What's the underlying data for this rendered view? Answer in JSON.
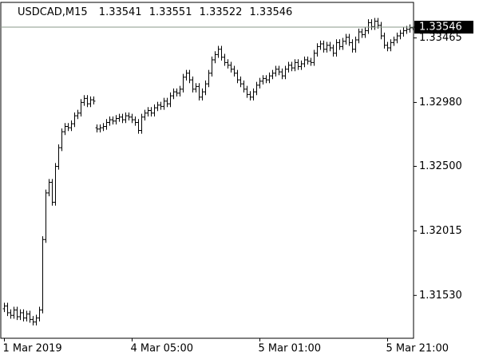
{
  "chart_data": {
    "type": "ohlc",
    "symbol": "USDCAD,M15",
    "color": "#000000",
    "price_line_color": "#8a9a8a",
    "ylim": [
      1.3122,
      1.3372
    ],
    "yticks": [
      {
        "value": 1.3153,
        "label": "1.31530"
      },
      1.32015,
      {
        "value": 1.325,
        "label": "1.32500"
      },
      {
        "value": 1.3298,
        "label": "1.32980"
      },
      1.33465
    ],
    "categories": [
      "1 Mar 2019",
      null,
      null,
      null,
      null,
      null,
      null,
      null,
      null,
      null,
      null,
      null,
      null,
      null,
      null,
      null,
      null,
      null,
      null,
      null,
      null,
      null,
      null,
      null,
      null,
      null,
      null,
      null,
      null,
      null,
      null,
      null,
      null,
      null,
      null,
      null,
      null,
      null,
      null,
      null,
      "4 Mar 05:00",
      null,
      null,
      null,
      null,
      null,
      null,
      null,
      null,
      null,
      null,
      null,
      null,
      null,
      null,
      null,
      null,
      null,
      null,
      null,
      null,
      null,
      null,
      null,
      null,
      null,
      null,
      null,
      null,
      null,
      null,
      null,
      null,
      null,
      null,
      null,
      null,
      null,
      null,
      null,
      "5 Mar 01:00",
      null,
      null,
      null,
      null,
      null,
      null,
      null,
      null,
      null,
      null,
      null,
      null,
      null,
      null,
      null,
      null,
      null,
      null,
      null,
      null,
      null,
      null,
      null,
      null,
      null,
      null,
      null,
      null,
      null,
      null,
      null,
      null,
      null,
      null,
      null,
      null,
      null,
      null,
      null,
      "5 Mar 21:00",
      null,
      null,
      null,
      null,
      null,
      null,
      null,
      null
    ],
    "open": [
      1.3143,
      1.3145,
      1.314,
      1.3138,
      1.3142,
      1.3137,
      1.314,
      1.3136,
      1.3139,
      1.3135,
      1.3133,
      1.3136,
      1.3142,
      1.3195,
      1.323,
      1.3238,
      1.3223,
      1.325,
      1.3264,
      1.3276,
      1.328,
      1.3279,
      1.3282,
      1.3288,
      1.329,
      1.3298,
      1.3301,
      1.3297,
      1.33,
      1.3279,
      1.3278,
      1.3279,
      1.328,
      1.3283,
      1.3285,
      1.3284,
      1.3286,
      1.3287,
      1.3285,
      1.3288,
      1.3287,
      1.3285,
      1.3283,
      1.3277,
      1.3287,
      1.329,
      1.3292,
      1.329,
      1.3294,
      1.3296,
      1.3295,
      1.3299,
      1.3297,
      1.3303,
      1.3306,
      1.3305,
      1.3308,
      1.3317,
      1.332,
      1.3315,
      1.3308,
      1.331,
      1.3302,
      1.3306,
      1.3312,
      1.332,
      1.333,
      1.3334,
      1.3338,
      1.3332,
      1.3328,
      1.3326,
      1.3323,
      1.332,
      1.3315,
      1.3312,
      1.3308,
      1.3304,
      1.3302,
      1.3306,
      1.3311,
      1.3314,
      1.3316,
      1.3315,
      1.3318,
      1.332,
      1.3323,
      1.3321,
      1.3318,
      1.3323,
      1.3326,
      1.3324,
      1.3328,
      1.3325,
      1.3327,
      1.333,
      1.3329,
      1.3328,
      1.3335,
      1.334,
      1.3342,
      1.3338,
      1.3341,
      1.3339,
      1.3335,
      1.3343,
      1.334,
      1.3344,
      1.3347,
      1.3343,
      1.3338,
      1.3345,
      1.3351,
      1.3349,
      1.3352,
      1.3358,
      1.3355,
      1.3359,
      1.3356,
      1.3348,
      1.3341,
      1.3339,
      1.3343,
      1.3345,
      1.3348,
      1.335,
      1.3352,
      1.3353,
      1.33541
    ],
    "high": [
      1.31475,
      1.31475,
      1.31425,
      1.31445,
      1.31445,
      1.31425,
      1.31425,
      1.31415,
      1.31415,
      1.31375,
      1.31385,
      1.31445,
      1.31975,
      1.32325,
      1.32405,
      1.32405,
      1.32525,
      1.32665,
      1.32785,
      1.32825,
      1.32825,
      1.32845,
      1.32905,
      1.32925,
      1.33005,
      1.33035,
      1.33035,
      1.33025,
      1.33025,
      1.32815,
      1.32815,
      1.32825,
      1.32855,
      1.32875,
      1.32875,
      1.32885,
      1.32895,
      1.32895,
      1.32905,
      1.32905,
      1.32895,
      1.32875,
      1.32855,
      1.32895,
      1.32925,
      1.32945,
      1.32945,
      1.32965,
      1.32985,
      1.32985,
      1.33015,
      1.33015,
      1.33055,
      1.33085,
      1.33085,
      1.33105,
      1.33195,
      1.33225,
      1.33225,
      1.33175,
      1.33125,
      1.33125,
      1.33085,
      1.33145,
      1.33225,
      1.33325,
      1.33365,
      1.33405,
      1.33405,
      1.33345,
      1.33305,
      1.33285,
      1.33255,
      1.33225,
      1.33175,
      1.33145,
      1.33105,
      1.33065,
      1.33085,
      1.33135,
      1.33165,
      1.33185,
      1.33185,
      1.33205,
      1.33225,
      1.33255,
      1.33255,
      1.33235,
      1.33255,
      1.33285,
      1.33285,
      1.33305,
      1.33305,
      1.33295,
      1.33325,
      1.33325,
      1.33315,
      1.33375,
      1.33425,
      1.33445,
      1.33445,
      1.33435,
      1.33435,
      1.33415,
      1.33455,
      1.33455,
      1.33465,
      1.33495,
      1.33495,
      1.33455,
      1.33475,
      1.33535,
      1.33535,
      1.33545,
      1.33605,
      1.33605,
      1.33615,
      1.33615,
      1.33585,
      1.33505,
      1.33435,
      1.33455,
      1.33475,
      1.33505,
      1.33525,
      1.33545,
      1.33555,
      1.33566,
      1.33551
    ],
    "low": [
      1.31405,
      1.31375,
      1.31355,
      1.31355,
      1.31345,
      1.31345,
      1.31335,
      1.31335,
      1.31325,
      1.31305,
      1.31305,
      1.31335,
      1.31395,
      1.31925,
      1.32275,
      1.32205,
      1.32205,
      1.32475,
      1.32615,
      1.32735,
      1.32765,
      1.32765,
      1.32795,
      1.32855,
      1.32875,
      1.32955,
      1.32945,
      1.32945,
      1.32965,
      1.32755,
      1.32755,
      1.32765,
      1.32775,
      1.32805,
      1.32815,
      1.32815,
      1.32835,
      1.32825,
      1.32825,
      1.32845,
      1.32825,
      1.32805,
      1.32745,
      1.32745,
      1.32845,
      1.32875,
      1.32875,
      1.32875,
      1.32915,
      1.32925,
      1.32925,
      1.32945,
      1.32945,
      1.33005,
      1.33025,
      1.33025,
      1.33055,
      1.33145,
      1.33125,
      1.33055,
      1.33055,
      1.32995,
      1.32995,
      1.33035,
      1.33095,
      1.33175,
      1.33275,
      1.33315,
      1.33295,
      1.33255,
      1.33235,
      1.33205,
      1.33175,
      1.33125,
      1.33095,
      1.33055,
      1.33015,
      1.32995,
      1.32995,
      1.33035,
      1.33085,
      1.33115,
      1.33125,
      1.33125,
      1.33155,
      1.33175,
      1.33185,
      1.33155,
      1.33155,
      1.33205,
      1.33215,
      1.33215,
      1.33225,
      1.33225,
      1.33245,
      1.33265,
      1.33255,
      1.33255,
      1.33325,
      1.33375,
      1.33355,
      1.33355,
      1.33365,
      1.33325,
      1.33325,
      1.33375,
      1.33375,
      1.33415,
      1.33405,
      1.33355,
      1.33355,
      1.33425,
      1.33465,
      1.33465,
      1.33495,
      1.33525,
      1.33525,
      1.33535,
      1.33455,
      1.33385,
      1.33365,
      1.33365,
      1.33405,
      1.33425,
      1.33455,
      1.33475,
      1.33495,
      1.33505,
      1.33522
    ],
    "close": [
      1.3145,
      1.314,
      1.3138,
      1.3142,
      1.3137,
      1.314,
      1.3136,
      1.3139,
      1.3135,
      1.3133,
      1.3136,
      1.3142,
      1.3195,
      1.323,
      1.3238,
      1.3223,
      1.325,
      1.3264,
      1.3276,
      1.328,
      1.3279,
      1.3282,
      1.3288,
      1.329,
      1.3298,
      1.3301,
      1.3297,
      1.33,
      1.3299,
      1.3278,
      1.3279,
      1.328,
      1.3283,
      1.3285,
      1.3284,
      1.3286,
      1.3287,
      1.3285,
      1.3288,
      1.3287,
      1.3285,
      1.3283,
      1.3277,
      1.3287,
      1.329,
      1.3292,
      1.329,
      1.3294,
      1.3296,
      1.3295,
      1.3299,
      1.3297,
      1.3303,
      1.3306,
      1.3305,
      1.3308,
      1.3317,
      1.332,
      1.3315,
      1.3308,
      1.331,
      1.3302,
      1.3306,
      1.3312,
      1.332,
      1.333,
      1.3334,
      1.3338,
      1.3332,
      1.3328,
      1.3326,
      1.3323,
      1.332,
      1.3315,
      1.3312,
      1.3308,
      1.3304,
      1.3302,
      1.3306,
      1.3311,
      1.3314,
      1.3316,
      1.3315,
      1.3318,
      1.332,
      1.3323,
      1.3321,
      1.3318,
      1.3323,
      1.3326,
      1.3324,
      1.3328,
      1.3325,
      1.3327,
      1.333,
      1.3329,
      1.3328,
      1.3335,
      1.334,
      1.3342,
      1.3338,
      1.3341,
      1.3339,
      1.3335,
      1.3343,
      1.334,
      1.3344,
      1.3347,
      1.3343,
      1.3338,
      1.3345,
      1.3351,
      1.3349,
      1.3352,
      1.3358,
      1.3355,
      1.3359,
      1.3356,
      1.3348,
      1.3341,
      1.3339,
      1.3343,
      1.3345,
      1.3348,
      1.335,
      1.3352,
      1.3353,
      1.33541,
      1.33546
    ]
  }
}
